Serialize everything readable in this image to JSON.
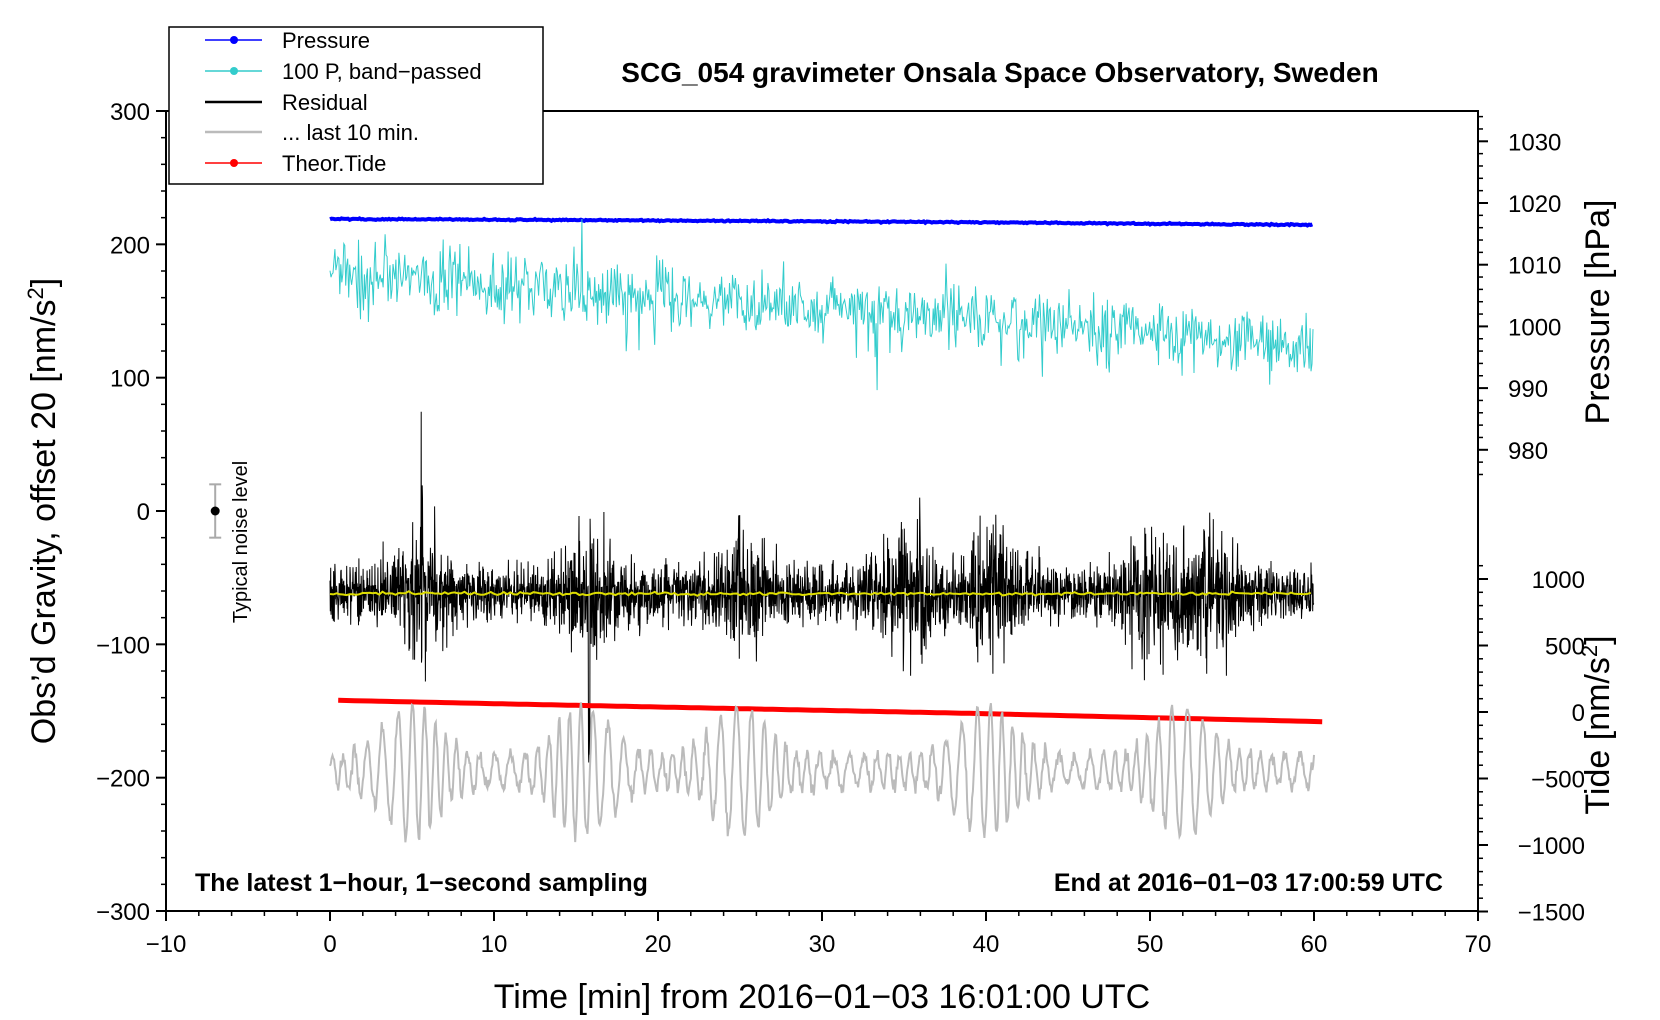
{
  "chart_data": {
    "type": "line",
    "title": "SCG_054 gravimeter Onsala Space Observatory, Sweden",
    "xlabel": "Time [min] from 2016−01−03 16:01:00 UTC",
    "ylabel_left_main": "Obs’d Gravity, offset 20 [nm/s",
    "ylabel_left_sup": "2",
    "ylabel_left_close": "]",
    "ylabel_right_pressure": "Pressure [hPa]",
    "ylabel_right_tide_main": "Tide [nm/s",
    "ylabel_right_tide_sup": "2",
    "ylabel_right_tide_close": "]",
    "xlim": [
      -10,
      70
    ],
    "ylim": [
      -300,
      300
    ],
    "xticks": [
      -10,
      0,
      10,
      20,
      30,
      40,
      50,
      60,
      70
    ],
    "xtick_labels": [
      "−10",
      "0",
      "10",
      "20",
      "30",
      "40",
      "50",
      "60",
      "70"
    ],
    "yticks": [
      -300,
      -200,
      -100,
      0,
      100,
      200,
      300
    ],
    "ytick_labels": [
      "−300",
      "−200",
      "−100",
      "0",
      "100",
      "200",
      "300"
    ],
    "pressure_axis": {
      "ticks": [
        980,
        990,
        1000,
        1010,
        1020,
        1030
      ],
      "labels": [
        "980",
        "990",
        "1000",
        "1010",
        "1020",
        "1030"
      ]
    },
    "tide_axis": {
      "ticks": [
        -1500,
        -1000,
        -500,
        0,
        500,
        1000
      ],
      "labels": [
        "−1500",
        "−1000",
        "−500",
        "0",
        "500",
        "1000"
      ]
    },
    "series": [
      {
        "name": "Pressure",
        "color": "#0000ff",
        "x": [
          0,
          10,
          20,
          30,
          40,
          50,
          60
        ],
        "y": [
          219,
          218.5,
          217.8,
          217.2,
          216.5,
          215.5,
          214.5
        ]
      },
      {
        "name": "100 P, band−passed",
        "color": "#33cccc",
        "x": [
          0,
          10,
          20,
          30,
          40,
          50,
          60
        ],
        "y": [
          180,
          170,
          160,
          152,
          145,
          135,
          120
        ]
      },
      {
        "name": "Residual",
        "color": "#000000",
        "x": [
          0,
          10,
          20,
          30,
          40,
          50,
          60
        ],
        "y": [
          -62,
          -62,
          -62,
          -62,
          -62,
          -62,
          -62
        ]
      },
      {
        "name": "... last 10 min.",
        "color": "#bbbbbb",
        "x": [
          0,
          10,
          20,
          30,
          40,
          50,
          60
        ],
        "y": [
          -195,
          -195,
          -195,
          -195,
          -195,
          -195,
          -195
        ]
      },
      {
        "name": "Theor.Tide",
        "color": "#ff0000",
        "x": [
          0.5,
          10,
          20,
          30,
          40,
          50,
          60.5
        ],
        "y": [
          -142,
          -144.5,
          -147,
          -149.5,
          -152,
          -155,
          -158
        ]
      }
    ],
    "noise_bar": {
      "x": -7,
      "y": 0,
      "halfwidth": 20,
      "label": "Typical noise level"
    },
    "annotations": [
      {
        "text": "The latest 1−hour, 1−second sampling",
        "position": "bottom-left"
      },
      {
        "text": "End at 2016−01−03 17:00:59 UTC",
        "position": "bottom-right"
      }
    ],
    "legend_position": "top-left",
    "colors": {
      "pressure": "#0000ff",
      "bandpassed": "#33cccc",
      "residual": "#000000",
      "last10": "#bbbbbb",
      "tide": "#ff0000",
      "mean_line": "#dddd00"
    }
  }
}
